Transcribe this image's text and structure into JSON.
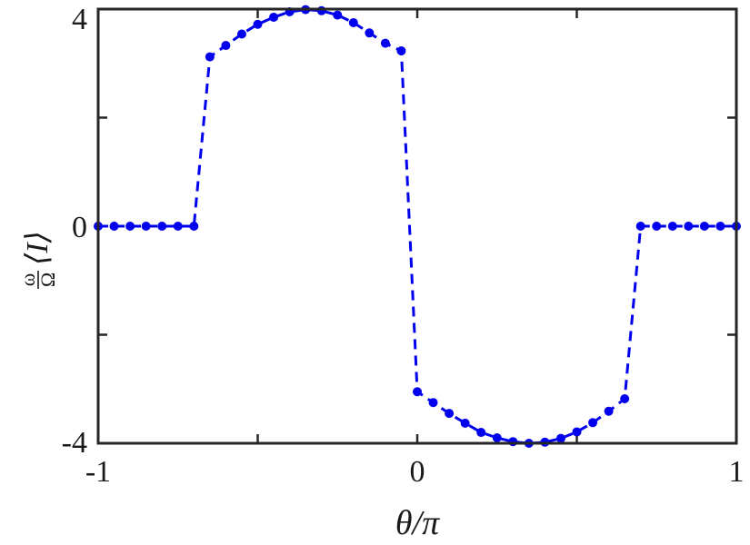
{
  "chart_data": {
    "type": "line",
    "title": "",
    "xlabel": "θ/π",
    "ylabel": {
      "frac_top": "ω",
      "frac_bottom": "Ω",
      "expr": "⟨I⟩"
    },
    "xlim": [
      -1,
      1
    ],
    "ylim": [
      -4,
      4
    ],
    "xticks": [
      -1,
      -0.5,
      0,
      0.5,
      1
    ],
    "yticks": [
      -4,
      -2,
      0,
      2,
      4
    ],
    "xtick_labels": [
      "-1",
      "",
      "0",
      "",
      "1"
    ],
    "ytick_labels": [
      "-4",
      "",
      "0",
      "",
      "4"
    ],
    "grid": false,
    "legend": "none",
    "series": [
      {
        "color": "#0000ee",
        "line_style": "dashed",
        "marker": "dot",
        "points": [
          [
            -1.0,
            0
          ],
          [
            -0.95,
            0
          ],
          [
            -0.9,
            0
          ],
          [
            -0.85,
            0
          ],
          [
            -0.8,
            0
          ],
          [
            -0.75,
            0
          ],
          [
            -0.7,
            0
          ],
          [
            -0.65,
            3.12
          ],
          [
            -0.6,
            3.33
          ],
          [
            -0.55,
            3.54
          ],
          [
            -0.5,
            3.72
          ],
          [
            -0.45,
            3.85
          ],
          [
            -0.4,
            3.95
          ],
          [
            -0.35,
            3.99
          ],
          [
            -0.3,
            3.97
          ],
          [
            -0.25,
            3.89
          ],
          [
            -0.2,
            3.75
          ],
          [
            -0.15,
            3.56
          ],
          [
            -0.1,
            3.37
          ],
          [
            -0.05,
            3.23
          ],
          [
            0.0,
            -3.05
          ],
          [
            0.05,
            -3.25
          ],
          [
            0.1,
            -3.45
          ],
          [
            0.15,
            -3.63
          ],
          [
            0.2,
            -3.8
          ],
          [
            0.25,
            -3.9
          ],
          [
            0.3,
            -3.97
          ],
          [
            0.35,
            -4.0
          ],
          [
            0.4,
            -3.98
          ],
          [
            0.45,
            -3.91
          ],
          [
            0.5,
            -3.79
          ],
          [
            0.55,
            -3.62
          ],
          [
            0.6,
            -3.41
          ],
          [
            0.65,
            -3.18
          ],
          [
            0.7,
            0
          ],
          [
            0.75,
            0
          ],
          [
            0.8,
            0
          ],
          [
            0.85,
            0
          ],
          [
            0.9,
            0
          ],
          [
            0.95,
            0
          ],
          [
            1.0,
            0
          ]
        ]
      }
    ]
  }
}
